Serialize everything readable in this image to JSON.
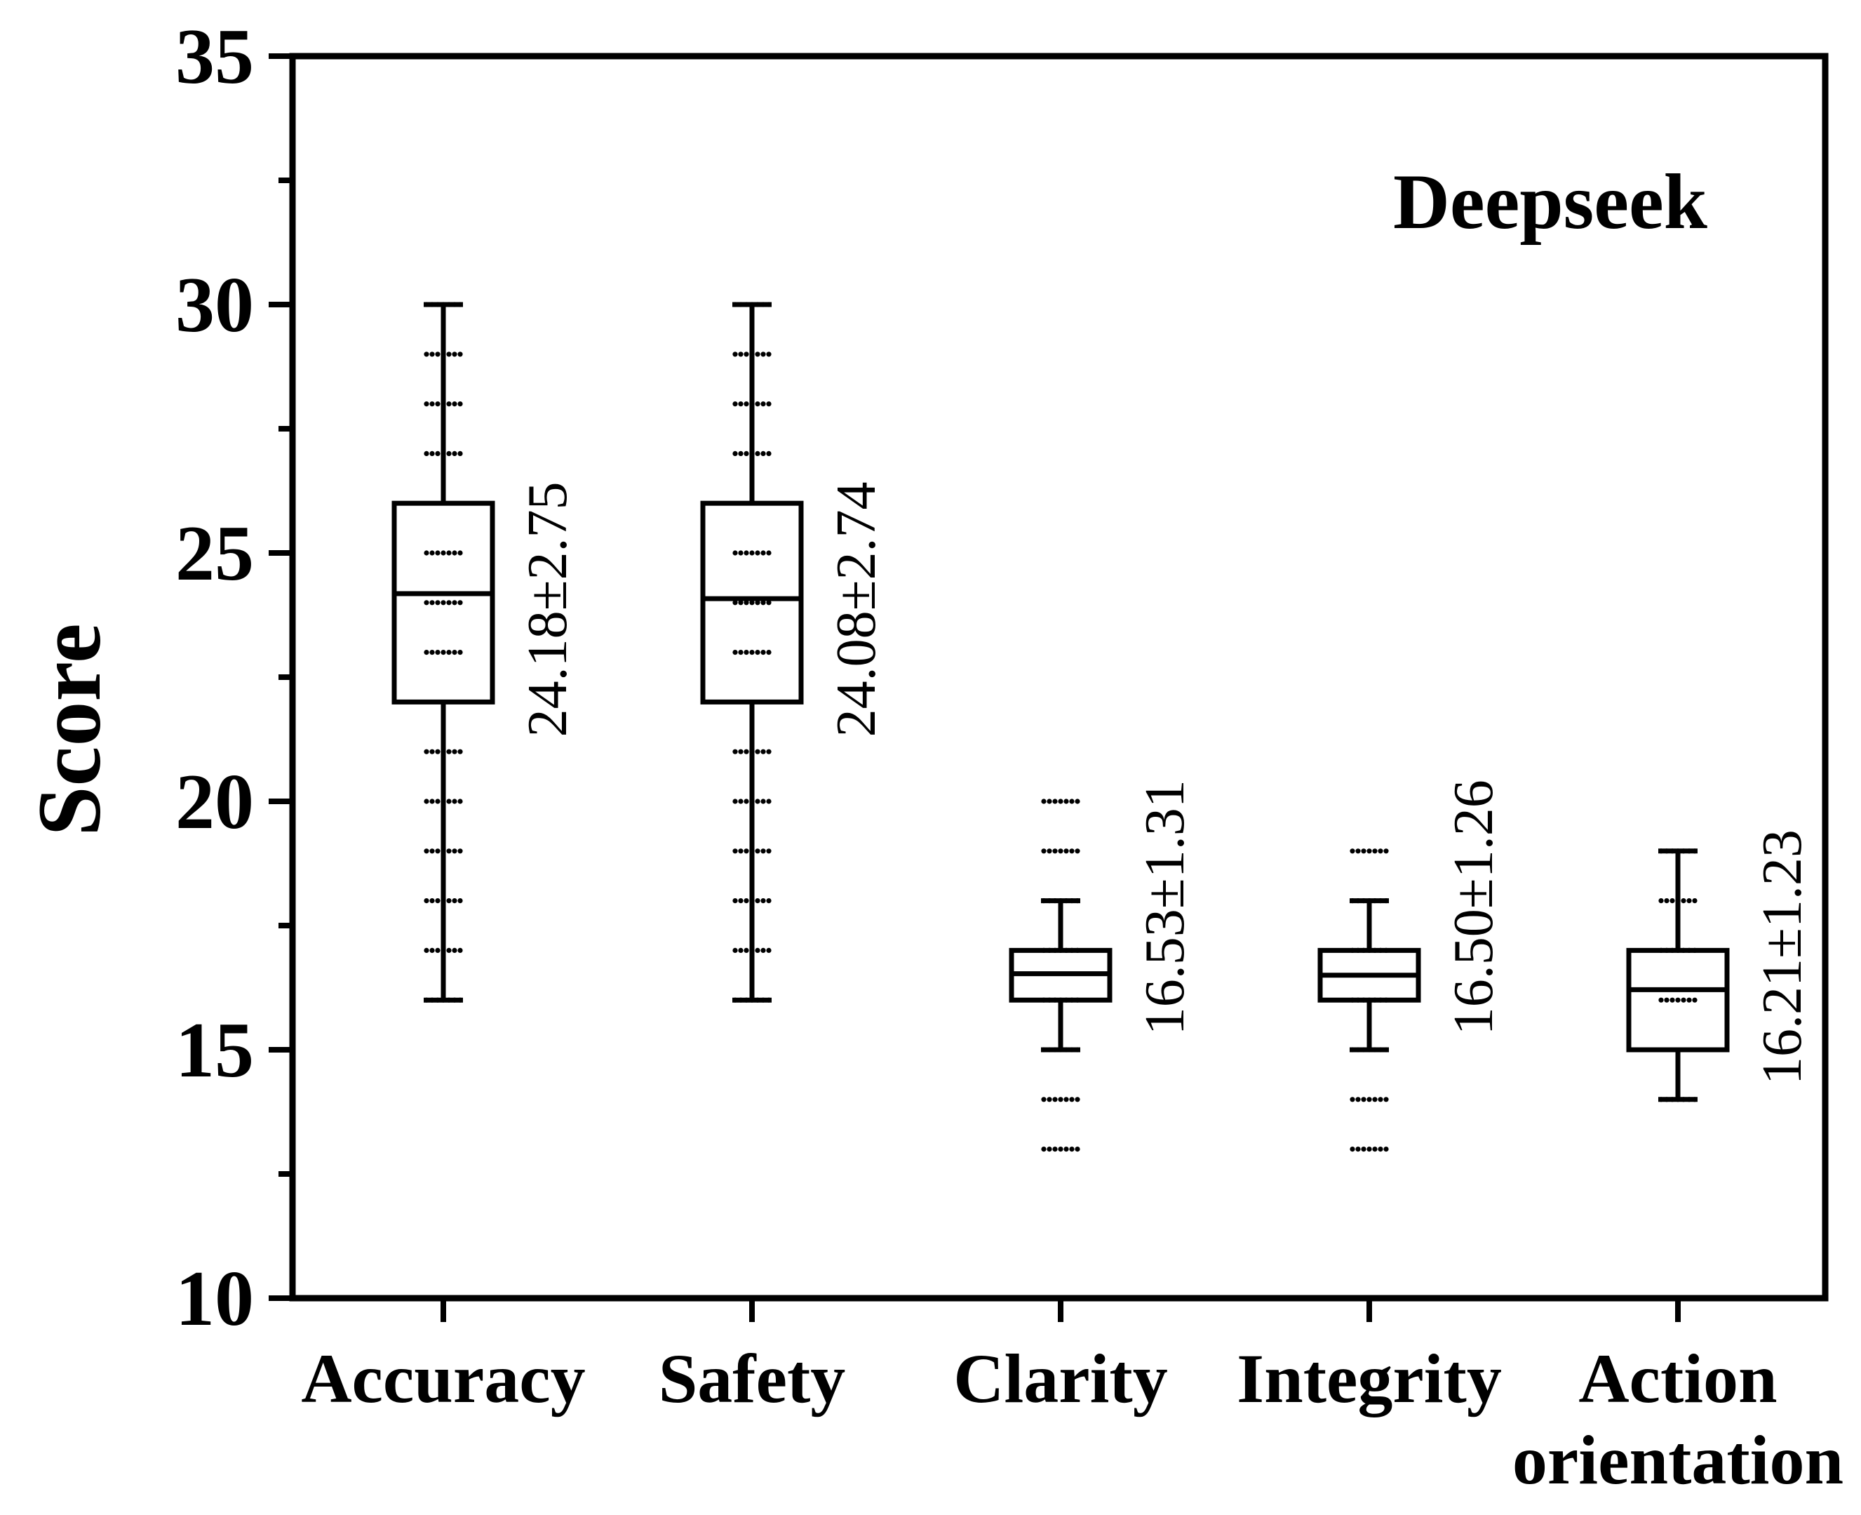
{
  "chart_data": {
    "type": "box",
    "title": "",
    "annotation": "Deepseek",
    "xlabel": "",
    "ylabel": "Score",
    "ylim": [
      10,
      35
    ],
    "yticks": [
      10,
      15,
      20,
      25,
      30,
      35
    ],
    "yminor_step": 2.5,
    "grid": false,
    "categories": [
      {
        "lines": [
          "Accuracy"
        ]
      },
      {
        "lines": [
          "Safety"
        ]
      },
      {
        "lines": [
          "Clarity"
        ]
      },
      {
        "lines": [
          "Integrity"
        ]
      },
      {
        "lines": [
          "Action",
          "orientation"
        ]
      }
    ],
    "boxes": [
      {
        "q1": 22,
        "median": 24.18,
        "q3": 26,
        "whisker_low": 16,
        "whisker_high": 30,
        "stat": "24.18±2.75",
        "points": [
          16,
          17,
          18,
          19,
          20,
          21,
          23,
          24,
          25,
          27,
          28,
          29,
          30
        ]
      },
      {
        "q1": 22,
        "median": 24.08,
        "q3": 26,
        "whisker_low": 16,
        "whisker_high": 30,
        "stat": "24.08±2.74",
        "points": [
          16,
          17,
          18,
          19,
          20,
          21,
          23,
          24,
          25,
          27,
          28,
          29,
          30
        ]
      },
      {
        "q1": 16,
        "median": 16.53,
        "q3": 17,
        "whisker_low": 15,
        "whisker_high": 18,
        "stat": "16.53±1.31",
        "points": [
          13,
          14,
          15,
          16,
          17,
          18,
          19,
          20
        ]
      },
      {
        "q1": 16,
        "median": 16.5,
        "q3": 17,
        "whisker_low": 15,
        "whisker_high": 18,
        "stat": "16.50±1.26",
        "points": [
          13,
          14,
          15,
          16,
          17,
          18,
          19
        ]
      },
      {
        "q1": 15,
        "median": 16.21,
        "q3": 17,
        "whisker_low": 14,
        "whisker_high": 19,
        "stat": "16.21±1.23",
        "points": [
          14,
          16,
          17,
          18,
          19
        ]
      }
    ]
  }
}
